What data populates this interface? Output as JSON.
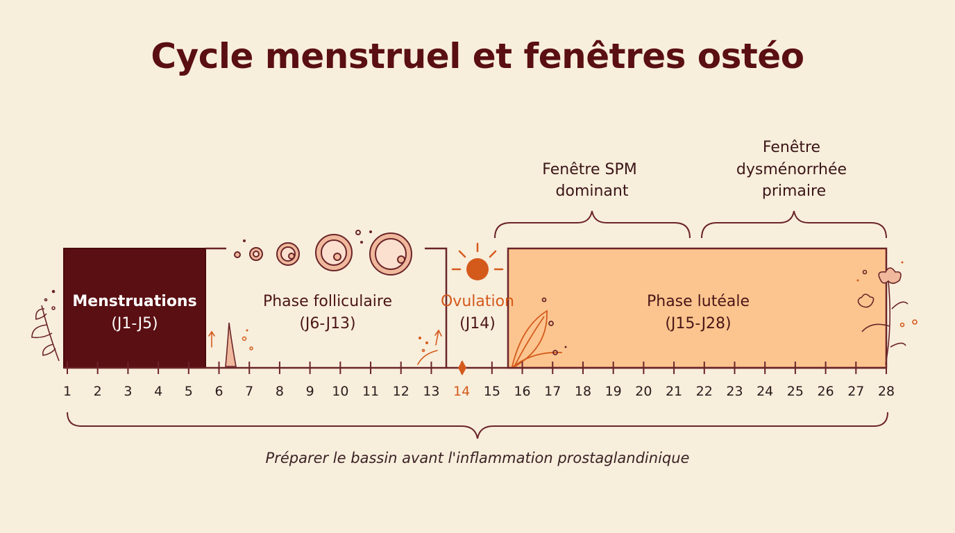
{
  "title": "Cycle menstruel et fenêtres ostéo",
  "colors": {
    "background": "#f8eedc",
    "dark": "#5a0f12",
    "line": "#6a2428",
    "ovulation": "#d45a1c",
    "luteal_fill": "#fcc58f",
    "follicle": "#f0b89c"
  },
  "windows": [
    {
      "lines": [
        "Fenêtre SPM",
        "dominant"
      ]
    },
    {
      "lines": [
        "Fenêtre",
        "dysménorrhée",
        "primaire"
      ]
    }
  ],
  "phases": [
    {
      "name": "Menstruations",
      "range": "(J1-J5)",
      "start_day": 1,
      "end_day": 5
    },
    {
      "name": "Phase folliculaire",
      "range": "(J6-J13)",
      "start_day": 6,
      "end_day": 13
    },
    {
      "name": "Ovulation",
      "range": "(J14)",
      "start_day": 14,
      "end_day": 14
    },
    {
      "name": "Phase lutéale",
      "range": "(J15-J28)",
      "start_day": 15,
      "end_day": 28
    }
  ],
  "days": [
    "1",
    "2",
    "3",
    "4",
    "5",
    "6",
    "7",
    "8",
    "9",
    "10",
    "11",
    "12",
    "13",
    "14",
    "15",
    "16",
    "17",
    "18",
    "19",
    "20",
    "21",
    "22",
    "23",
    "24",
    "25",
    "26",
    "27",
    "28"
  ],
  "highlight_day": "14",
  "caption": "Préparer le bassin avant l'inflammation prostaglandinique",
  "icons": [
    "leaf-sprig-icon",
    "follicle-icon",
    "sun-icon",
    "leaf-icon",
    "flower-icon",
    "diamond-marker-icon",
    "arrow-up-icon"
  ]
}
